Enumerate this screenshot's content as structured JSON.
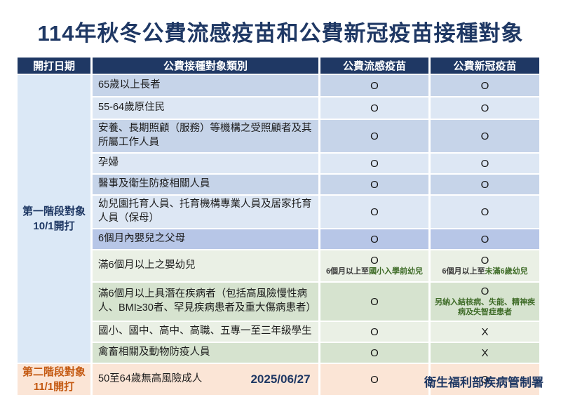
{
  "title": "114年秋冬公費流感疫苗和公費新冠疫苗接種對象",
  "table": {
    "headers": [
      "開打日期",
      "公費接種對象類別",
      "公費流感疫苗",
      "公費新冠疫苗"
    ],
    "stage1": {
      "line1": "第一階段對象",
      "line2": "10/1開打"
    },
    "stage2": {
      "line1": "第二階段對象",
      "line2": "11/1開打"
    },
    "rows": [
      {
        "category": "65歲以上長者",
        "flu": "O",
        "covid": "O"
      },
      {
        "category": "55-64歲原住民",
        "flu": "O",
        "covid": "O"
      },
      {
        "category": "安養、長期照顧（服務）等機構之受照顧者及其所屬工作人員",
        "flu": "O",
        "covid": "O"
      },
      {
        "category": "孕婦",
        "flu": "O",
        "covid": "O"
      },
      {
        "category": "醫事及衛生防疫相關人員",
        "flu": "O",
        "covid": "O"
      },
      {
        "category": "幼兒園托育人員、托育機構專業人員及居家托育人員（保母）",
        "flu": "O",
        "covid": "O"
      },
      {
        "category": "6個月內嬰兒之父母",
        "flu": "O",
        "covid": "O"
      },
      {
        "category": "滿6個月以上之嬰幼兒",
        "flu": "O",
        "covid": "O",
        "flu_note": {
          "prefix": "6個月以上至",
          "emphasis": "國小入學前幼兒"
        },
        "covid_note": {
          "prefix": "6個月以上至",
          "emphasis": "未滿6歲幼兒"
        }
      },
      {
        "category": "滿6個月以上具潛在疾病者（包括高風險慢性病人、BMI≥30者、罕見疾病患者及重大傷病患者）",
        "flu": "O",
        "covid": "O",
        "covid_note": {
          "prefix": "",
          "emphasis": "另納入結核病、失能、精神疾病及失智症患者"
        }
      },
      {
        "category": "國小、國中、高中、高職、五專一至三年級學生",
        "flu": "O",
        "covid": "X"
      },
      {
        "category": "禽畜相關及動物防疫人員",
        "flu": "O",
        "covid": "X"
      },
      {
        "category": "50至64歲無高風險成人",
        "flu": "O",
        "covid": "O"
      }
    ]
  },
  "footer": {
    "date": "2025/06/27",
    "agency": "衛生福利部疾病管制署"
  },
  "colors": {
    "title_navy": "#1F3864",
    "header_bg": "#1F3864",
    "header_text": "#FFFFFF",
    "row_blue_dark": "#C6D4E9",
    "row_blue_light": "#DDE7F4",
    "row_periwinkle": "#B7C6E7",
    "row_green_light": "#EAF0E5",
    "row_green_mid": "#D6E3CF",
    "row_peach": "#FBE5D6",
    "stage1_bg": "#DBE8F6",
    "stage2_text": "#C45911",
    "note_green": "#3F6C28"
  }
}
